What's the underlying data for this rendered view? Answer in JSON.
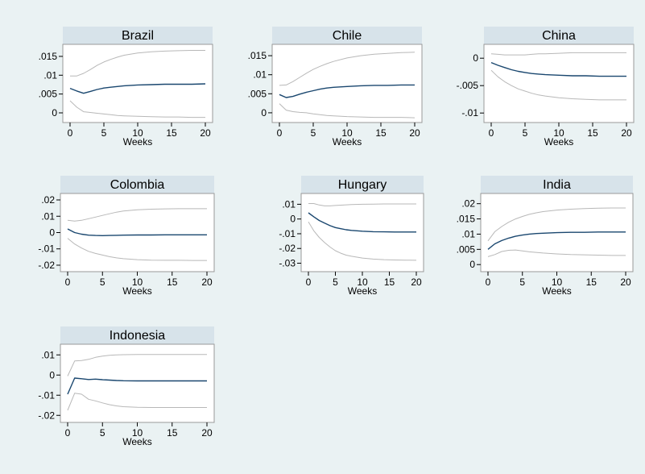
{
  "colors": {
    "background": "#eaf2f3",
    "plot_region": "#ffffff",
    "title_band": "#d7e3ea",
    "estimate_line": "#1a476f",
    "band_line": "#b8b8b8",
    "frame": "#999999"
  },
  "chart_data": [
    {
      "type": "line",
      "title": "Brazil",
      "xlabel": "Weeks",
      "xlim": [
        0,
        20
      ],
      "xticks": [
        0,
        5,
        10,
        15,
        20
      ],
      "ylim": [
        -0.0015,
        0.0167
      ],
      "yticks": [
        0,
        0.005,
        0.01,
        0.015
      ],
      "ytick_labels": [
        "0",
        ".005",
        ".01",
        ".015"
      ],
      "x": [
        0,
        1,
        2,
        3,
        4,
        5,
        6,
        7,
        8,
        10,
        12,
        14,
        16,
        18,
        20
      ],
      "series": [
        {
          "values": [
            0.0065,
            0.0058,
            0.0052,
            0.0057,
            0.0062,
            0.0066,
            0.0068,
            0.007,
            0.0072,
            0.0074,
            0.0075,
            0.0076,
            0.0076,
            0.0076,
            0.0077
          ]
        },
        {
          "values": [
            0.0098,
            0.0098,
            0.0105,
            0.0115,
            0.0126,
            0.0135,
            0.0142,
            0.0148,
            0.0153,
            0.0159,
            0.0162,
            0.0164,
            0.0165,
            0.0166,
            0.0166
          ]
        },
        {
          "values": [
            0.0032,
            0.0015,
            0.0003,
            0.0001,
            -0.0001,
            -0.0003,
            -0.0005,
            -0.0007,
            -0.0008,
            -0.0009,
            -0.001,
            -0.0011,
            -0.0011,
            -0.0012,
            -0.0012
          ]
        }
      ]
    },
    {
      "type": "line",
      "title": "Chile",
      "xlabel": "Weeks",
      "xlim": [
        0,
        20
      ],
      "xticks": [
        0,
        5,
        10,
        15,
        20
      ],
      "ylim": [
        -0.0015,
        0.0165
      ],
      "yticks": [
        0,
        0.005,
        0.01,
        0.015
      ],
      "ytick_labels": [
        "0",
        ".005",
        ".01",
        ".015"
      ],
      "x": [
        0,
        1,
        2,
        3,
        4,
        5,
        6,
        7,
        8,
        10,
        12,
        14,
        16,
        18,
        20
      ],
      "series": [
        {
          "values": [
            0.0048,
            0.004,
            0.0043,
            0.0049,
            0.0054,
            0.0058,
            0.0062,
            0.0065,
            0.0067,
            0.0069,
            0.0071,
            0.0072,
            0.0072,
            0.0073,
            0.0073
          ]
        },
        {
          "values": [
            0.0072,
            0.0073,
            0.0082,
            0.0093,
            0.0104,
            0.0114,
            0.0122,
            0.0129,
            0.0135,
            0.0144,
            0.015,
            0.0154,
            0.0156,
            0.0158,
            0.0159
          ]
        },
        {
          "values": [
            0.0024,
            0.0007,
            0.0003,
            0.0001,
            0,
            -0.0003,
            -0.0005,
            -0.0007,
            -0.0008,
            -0.001,
            -0.0011,
            -0.0012,
            -0.0012,
            -0.0012,
            -0.0013
          ]
        }
      ]
    },
    {
      "type": "line",
      "title": "China",
      "xlabel": "Weeks",
      "xlim": [
        0,
        20
      ],
      "xticks": [
        0,
        5,
        10,
        15,
        20
      ],
      "ylim": [
        -0.011,
        0.0015
      ],
      "yticks": [
        0,
        -0.005,
        -0.01
      ],
      "ytick_labels": [
        "0",
        "-.005",
        "-.01"
      ],
      "x": [
        0,
        1,
        2,
        3,
        4,
        5,
        6,
        7,
        8,
        10,
        12,
        14,
        16,
        18,
        20
      ],
      "series": [
        {
          "values": [
            -0.0008,
            -0.0013,
            -0.0017,
            -0.0021,
            -0.0024,
            -0.0026,
            -0.0028,
            -0.0029,
            -0.003,
            -0.0031,
            -0.0032,
            -0.0032,
            -0.0033,
            -0.0033,
            -0.0033
          ]
        },
        {
          "values": [
            0.0008,
            0.0007,
            0.0006,
            0.0006,
            0.0006,
            0.0006,
            0.0007,
            0.0008,
            0.0008,
            0.0009,
            0.001,
            0.001,
            0.001,
            0.001,
            0.001
          ]
        },
        {
          "values": [
            -0.0022,
            -0.0034,
            -0.0043,
            -0.005,
            -0.0056,
            -0.006,
            -0.0064,
            -0.0067,
            -0.0069,
            -0.0072,
            -0.0074,
            -0.0075,
            -0.0076,
            -0.0076,
            -0.0076
          ]
        }
      ]
    },
    {
      "type": "line",
      "title": "Colombia",
      "xlabel": "Weeks",
      "xlim": [
        0,
        20
      ],
      "xticks": [
        0,
        5,
        10,
        15,
        20
      ],
      "ylim": [
        -0.0215,
        0.0205
      ],
      "yticks": [
        0.02,
        0.01,
        0,
        -0.01,
        -0.02
      ],
      "ytick_labels": [
        ".02",
        ".01",
        "0",
        "-.01",
        "-.02"
      ],
      "x": [
        0,
        1,
        2,
        3,
        4,
        5,
        6,
        7,
        8,
        10,
        12,
        14,
        16,
        18,
        20
      ],
      "series": [
        {
          "values": [
            0.0022,
            0,
            -0.001,
            -0.0016,
            -0.0018,
            -0.0019,
            -0.0018,
            -0.0017,
            -0.0016,
            -0.0015,
            -0.0015,
            -0.0014,
            -0.0014,
            -0.0014,
            -0.0014
          ]
        },
        {
          "values": [
            0.0075,
            0.007,
            0.0075,
            0.0085,
            0.0095,
            0.0105,
            0.0115,
            0.0125,
            0.0132,
            0.014,
            0.0143,
            0.0145,
            0.0146,
            0.0146,
            0.0146
          ]
        },
        {
          "values": [
            -0.0035,
            -0.007,
            -0.0095,
            -0.0115,
            -0.0128,
            -0.0138,
            -0.0148,
            -0.0155,
            -0.016,
            -0.0166,
            -0.0169,
            -0.017,
            -0.017,
            -0.0171,
            -0.0171
          ]
        }
      ]
    },
    {
      "type": "line",
      "title": "Hungary",
      "xlabel": "Weeks",
      "xlim": [
        0,
        20
      ],
      "xticks": [
        0,
        5,
        10,
        15,
        20
      ],
      "ylim": [
        -0.033,
        0.0135
      ],
      "yticks": [
        0.01,
        0,
        -0.01,
        -0.02,
        -0.03
      ],
      "ytick_labels": [
        ".01",
        "0",
        "-.01",
        "-.02",
        "-.03"
      ],
      "x": [
        0,
        1,
        2,
        3,
        4,
        5,
        6,
        7,
        8,
        10,
        12,
        14,
        16,
        18,
        20
      ],
      "series": [
        {
          "values": [
            0.0042,
            0.0015,
            -0.001,
            -0.0028,
            -0.0045,
            -0.0058,
            -0.0066,
            -0.0073,
            -0.0077,
            -0.0083,
            -0.0086,
            -0.0087,
            -0.0088,
            -0.0088,
            -0.0088
          ]
        },
        {
          "values": [
            0.0105,
            0.0105,
            0.0095,
            0.0089,
            0.0089,
            0.0092,
            0.0094,
            0.0096,
            0.0098,
            0.01,
            0.0101,
            0.0102,
            0.0102,
            0.0102,
            0.0102
          ]
        },
        {
          "values": [
            -0.002,
            -0.008,
            -0.0125,
            -0.016,
            -0.019,
            -0.0215,
            -0.0232,
            -0.0245,
            -0.0253,
            -0.0265,
            -0.0272,
            -0.0276,
            -0.0278,
            -0.0279,
            -0.028
          ]
        }
      ]
    },
    {
      "type": "line",
      "title": "India",
      "xlabel": "Weeks",
      "xlim": [
        0,
        20
      ],
      "xticks": [
        0,
        5,
        10,
        15,
        20
      ],
      "ylim": [
        -0.001,
        0.0215
      ],
      "yticks": [
        0.02,
        0.015,
        0.01,
        0.005,
        0
      ],
      "ytick_labels": [
        ".02",
        ".015",
        ".01",
        ".005",
        "0"
      ],
      "x": [
        0,
        1,
        2,
        3,
        4,
        5,
        6,
        7,
        8,
        10,
        12,
        14,
        16,
        18,
        20
      ],
      "series": [
        {
          "values": [
            0.005,
            0.0068,
            0.0079,
            0.0087,
            0.0093,
            0.0097,
            0.01,
            0.0102,
            0.0103,
            0.0105,
            0.0106,
            0.0106,
            0.0107,
            0.0107,
            0.0107
          ]
        },
        {
          "values": [
            0.0078,
            0.0108,
            0.0125,
            0.0139,
            0.015,
            0.0158,
            0.0165,
            0.017,
            0.0174,
            0.0179,
            0.0182,
            0.0184,
            0.0185,
            0.0186,
            0.0186
          ]
        },
        {
          "values": [
            0.0026,
            0.0033,
            0.0043,
            0.0047,
            0.0048,
            0.0045,
            0.0042,
            0.004,
            0.0038,
            0.0035,
            0.0033,
            0.0032,
            0.0031,
            0.003,
            0.003
          ]
        }
      ]
    },
    {
      "type": "line",
      "title": "Indonesia",
      "xlabel": "Weeks",
      "xlim": [
        0,
        20
      ],
      "xticks": [
        0,
        5,
        10,
        15,
        20
      ],
      "ylim": [
        -0.0215,
        0.0125
      ],
      "yticks": [
        0.01,
        0,
        -0.01,
        -0.02
      ],
      "ytick_labels": [
        ".01",
        "0",
        "-.01",
        "-.02"
      ],
      "x": [
        0,
        1,
        2,
        3,
        4,
        5,
        6,
        7,
        8,
        10,
        12,
        14,
        16,
        18,
        20
      ],
      "series": [
        {
          "values": [
            -0.0095,
            -0.0015,
            -0.0018,
            -0.0022,
            -0.002,
            -0.0023,
            -0.0025,
            -0.0027,
            -0.0028,
            -0.0029,
            -0.0029,
            -0.0029,
            -0.0029,
            -0.0029,
            -0.0029
          ]
        },
        {
          "values": [
            -0.0005,
            0.007,
            0.0072,
            0.0078,
            0.0088,
            0.0094,
            0.0098,
            0.01,
            0.0101,
            0.0102,
            0.0102,
            0.0102,
            0.0102,
            0.0102,
            0.0102
          ]
        },
        {
          "values": [
            -0.0175,
            -0.009,
            -0.0095,
            -0.012,
            -0.0128,
            -0.0138,
            -0.0147,
            -0.0153,
            -0.0157,
            -0.016,
            -0.0161,
            -0.0161,
            -0.0161,
            -0.0161,
            -0.0161
          ]
        }
      ]
    }
  ]
}
